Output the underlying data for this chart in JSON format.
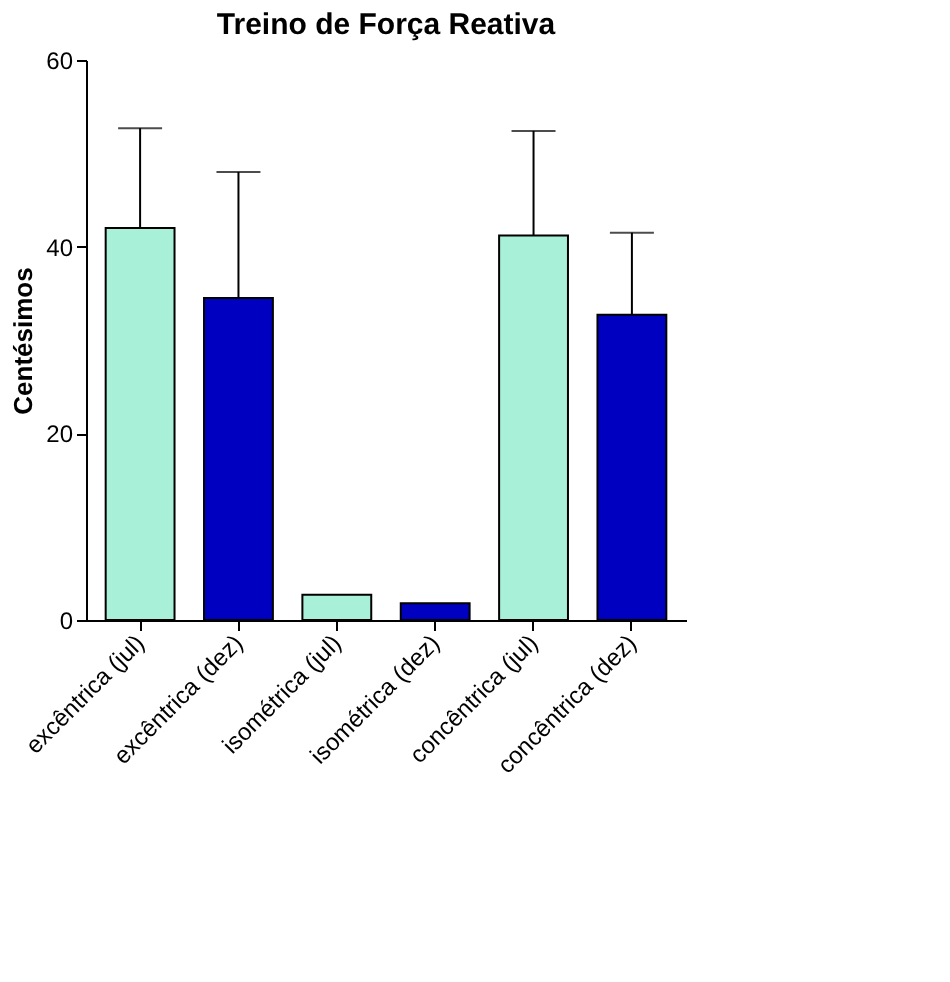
{
  "chart_data": {
    "type": "bar",
    "title": "Treino de Força Reativa",
    "ylabel": "Centésimos",
    "categories": [
      "excêntrica (jul)",
      "excêntrica (dez)",
      "isométrica (jul)",
      "isométrica (dez)",
      "concêntrica (jul)",
      "concêntrica (dez)"
    ],
    "values": [
      42,
      34.5,
      2.7,
      1.8,
      41.2,
      32.7
    ],
    "errors": [
      [
        42,
        52.7
      ],
      [
        34.5,
        48
      ],
      null,
      null,
      [
        41.2,
        52.4
      ],
      [
        32.7,
        41.5
      ]
    ],
    "colors": [
      "#a8f0d8",
      "#0000c0",
      "#a8f0d8",
      "#0000c0",
      "#a8f0d8",
      "#0000c0"
    ],
    "ylim": [
      0,
      60
    ],
    "yticks": [
      0,
      20,
      40,
      60
    ],
    "grid": false
  }
}
